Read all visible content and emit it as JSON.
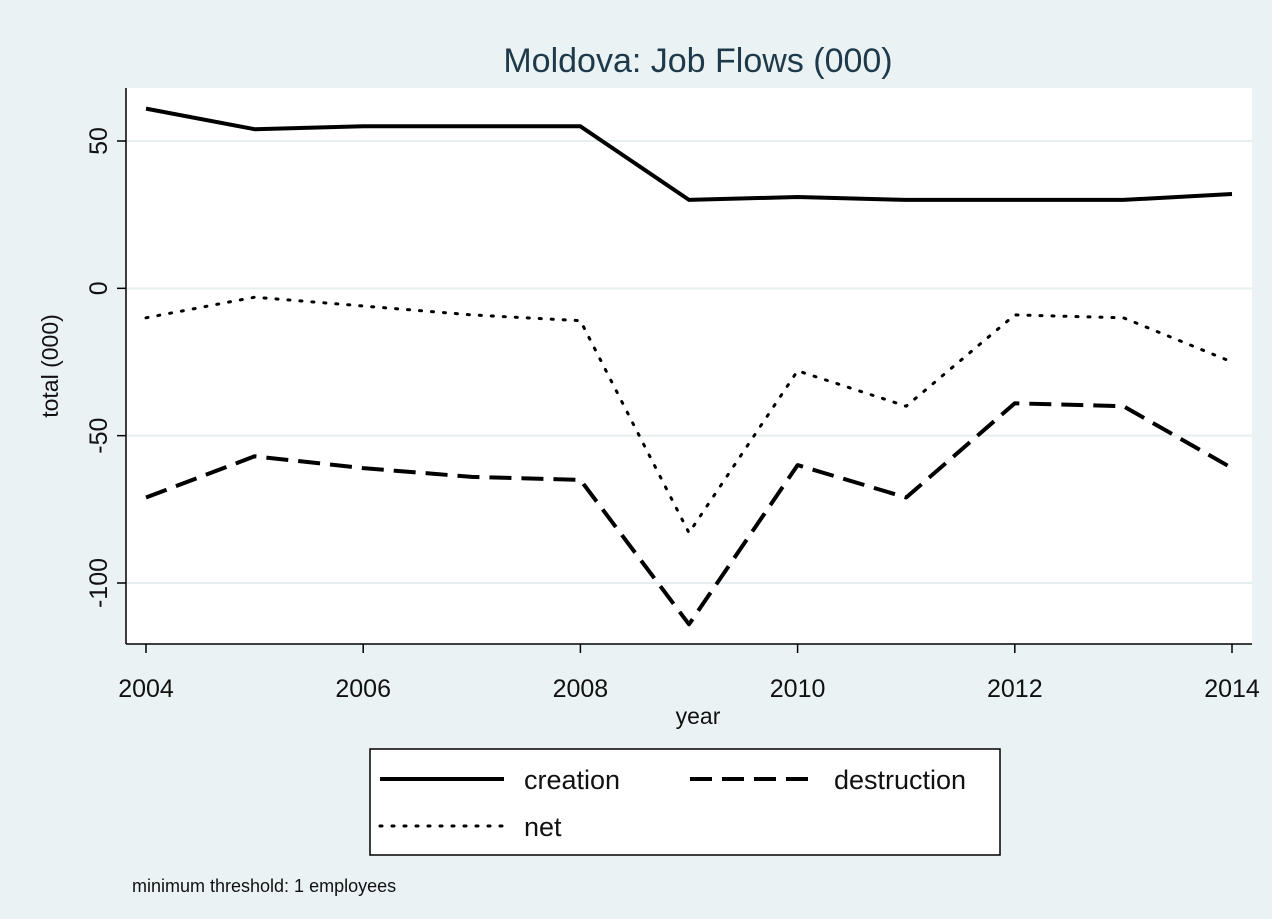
{
  "chart_data": {
    "type": "line",
    "title": "Moldova: Job Flows (000)",
    "xlabel": "year",
    "ylabel": "total (000)",
    "x": [
      2004,
      2005,
      2006,
      2007,
      2008,
      2009,
      2010,
      2011,
      2012,
      2013,
      2014
    ],
    "xlim": [
      2004,
      2014
    ],
    "ylim": [
      -120,
      68
    ],
    "xticks": [
      2004,
      2006,
      2008,
      2010,
      2012,
      2014
    ],
    "yticks": [
      50,
      0,
      -50,
      -100
    ],
    "ytick_labels": [
      "50",
      "0",
      "-50",
      "-100"
    ],
    "grid": true,
    "legend_position": "bottom",
    "series": [
      {
        "name": "creation",
        "style": "solid",
        "color": "#000000",
        "values": [
          61,
          54,
          55,
          55,
          55,
          30,
          31,
          30,
          30,
          30,
          32
        ]
      },
      {
        "name": "destruction",
        "style": "dashed",
        "color": "#000000",
        "values": [
          -71,
          -57,
          -61,
          -64,
          -65,
          -114,
          -60,
          -71,
          -39,
          -40,
          -61
        ]
      },
      {
        "name": "net",
        "style": "dotted",
        "color": "#000000",
        "values": [
          -10,
          -3,
          -6,
          -9,
          -11,
          -83,
          -28,
          -40,
          -9,
          -10,
          -25
        ]
      }
    ],
    "note": "minimum threshold: 1 employees"
  }
}
